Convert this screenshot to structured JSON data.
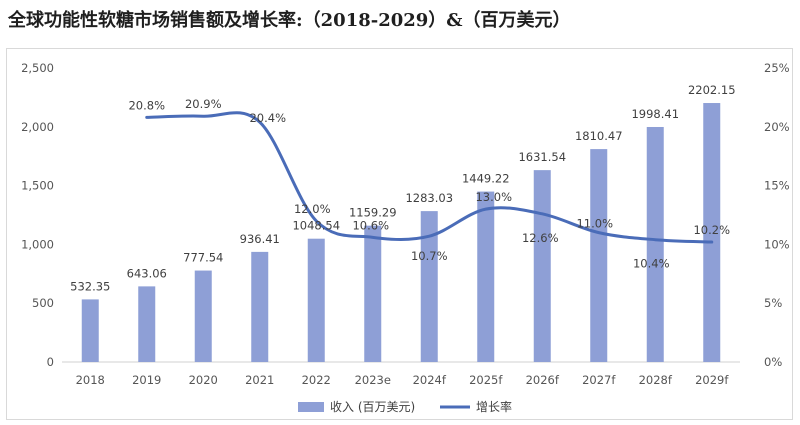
{
  "title": "全球功能性软糖市场销售额及增长率:（2018-2029）&（百万美元）",
  "chart_data": {
    "type": "bar",
    "categories": [
      "2018",
      "2019",
      "2020",
      "2021",
      "2022",
      "2023e",
      "2024f",
      "2025f",
      "2026f",
      "2027f",
      "2028f",
      "2029f"
    ],
    "series": [
      {
        "name": "收入 (百万美元)",
        "type": "bar",
        "axis": "left",
        "color": "#8e9fd6",
        "values": [
          532.35,
          643.06,
          777.54,
          936.41,
          1048.54,
          1159.29,
          1283.03,
          1449.22,
          1631.54,
          1810.47,
          1998.41,
          2202.15
        ],
        "labels": [
          "532.35",
          "643.06",
          "777.54",
          "936.41",
          "1048.54",
          "1159.29",
          "1283.03",
          "1449.22",
          "1631.54",
          "1810.47",
          "1998.41",
          "2202.15"
        ]
      },
      {
        "name": "增长率",
        "type": "line",
        "axis": "right",
        "color": "#4a6cb8",
        "values": [
          null,
          20.8,
          20.9,
          20.4,
          12.0,
          10.6,
          10.7,
          13.0,
          12.6,
          11.0,
          10.4,
          10.2
        ],
        "labels": [
          null,
          "20.8%",
          "20.9%",
          "20.4%",
          "12.0%",
          "10.6%",
          "10.7%",
          "13.0%",
          "12.6%",
          "11.0%",
          "10.4%",
          "10.2%"
        ]
      }
    ],
    "y_left": {
      "min": 0,
      "max": 2500,
      "ticks": [
        "0",
        "500",
        "1,000",
        "1,500",
        "2,000",
        "2,500"
      ]
    },
    "y_right": {
      "min": 0,
      "max": 25,
      "ticks": [
        "0%",
        "5%",
        "10%",
        "15%",
        "20%",
        "25%"
      ]
    },
    "legend": {
      "position": "bottom",
      "items": [
        "收入 (百万美元)",
        "增长率"
      ]
    },
    "grid": false
  }
}
